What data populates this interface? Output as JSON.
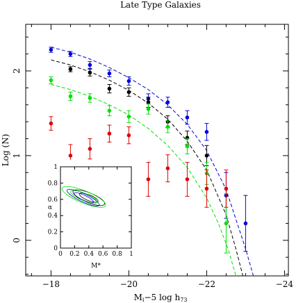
{
  "chart_data": {
    "type": "scatter",
    "title": "Late Type Galaxies",
    "xlabel_parts": {
      "base": "M",
      "base_sub": "i",
      "mid": "−5 log h",
      "end_sub": "73"
    },
    "ylabel": "Log (N)",
    "xlim": [
      -17.35,
      -24.1
    ],
    "ylim": [
      -0.42,
      2.55
    ],
    "x_ticks": [
      -18,
      -20,
      -22,
      -24
    ],
    "x_tick_labels": [
      "−18",
      "−20",
      "−22",
      "−24"
    ],
    "y_ticks": [
      0,
      1,
      2
    ],
    "y_tick_labels": [
      "0",
      "1",
      "2"
    ],
    "series": [
      {
        "color": "#0000dd",
        "points": [
          {
            "x": -18.0,
            "y": 2.25,
            "err": 0.03
          },
          {
            "x": -18.5,
            "y": 2.2,
            "err": 0.03
          },
          {
            "x": -19.0,
            "y": 2.07,
            "err": 0.04
          },
          {
            "x": -19.5,
            "y": 1.97,
            "err": 0.04
          },
          {
            "x": -20.0,
            "y": 1.88,
            "err": 0.05
          },
          {
            "x": -20.5,
            "y": 1.67,
            "err": 0.06
          },
          {
            "x": -21.0,
            "y": 1.63,
            "err": 0.06
          },
          {
            "x": -21.5,
            "y": 1.45,
            "err": 0.08
          },
          {
            "x": -22.0,
            "y": 1.28,
            "err": 0.1
          },
          {
            "x": -22.5,
            "y": 0.53,
            "err": 0.27
          },
          {
            "x": -23.0,
            "y": 0.2,
            "err": 0.33
          }
        ],
        "fit": [
          {
            "x": -18.0,
            "y": 2.28
          },
          {
            "x": -18.5,
            "y": 2.22
          },
          {
            "x": -19.0,
            "y": 2.14
          },
          {
            "x": -19.5,
            "y": 2.04
          },
          {
            "x": -20.0,
            "y": 1.92
          },
          {
            "x": -20.5,
            "y": 1.78
          },
          {
            "x": -21.0,
            "y": 1.6
          },
          {
            "x": -21.5,
            "y": 1.37
          },
          {
            "x": -22.0,
            "y": 1.06
          },
          {
            "x": -22.5,
            "y": 0.6
          },
          {
            "x": -23.0,
            "y": -0.1
          },
          {
            "x": -23.2,
            "y": -0.42
          }
        ]
      },
      {
        "color": "#000000",
        "points": [
          {
            "x": -18.5,
            "y": 2.02,
            "err": 0.03
          },
          {
            "x": -19.0,
            "y": 1.98,
            "err": 0.04
          },
          {
            "x": -19.5,
            "y": 1.79,
            "err": 0.05
          },
          {
            "x": -20.0,
            "y": 1.75,
            "err": 0.05
          },
          {
            "x": -20.5,
            "y": 1.63,
            "err": 0.06
          },
          {
            "x": -21.0,
            "y": 1.4,
            "err": 0.07
          },
          {
            "x": -21.5,
            "y": 1.21,
            "err": 0.08
          },
          {
            "x": -22.0,
            "y": 1.0,
            "err": 0.12
          }
        ],
        "fit": [
          {
            "x": -18.0,
            "y": 2.13
          },
          {
            "x": -18.5,
            "y": 2.07
          },
          {
            "x": -19.0,
            "y": 1.99
          },
          {
            "x": -19.5,
            "y": 1.89
          },
          {
            "x": -20.0,
            "y": 1.77
          },
          {
            "x": -20.5,
            "y": 1.62
          },
          {
            "x": -21.0,
            "y": 1.43
          },
          {
            "x": -21.5,
            "y": 1.17
          },
          {
            "x": -22.0,
            "y": 0.83
          },
          {
            "x": -22.5,
            "y": 0.3
          },
          {
            "x": -22.75,
            "y": -0.1
          },
          {
            "x": -22.93,
            "y": -0.42
          }
        ]
      },
      {
        "color": "#00e000",
        "points": [
          {
            "x": -18.0,
            "y": 1.89,
            "err": 0.04
          },
          {
            "x": -18.5,
            "y": 1.7,
            "err": 0.05
          },
          {
            "x": -19.0,
            "y": 1.68,
            "err": 0.05
          },
          {
            "x": -19.5,
            "y": 1.53,
            "err": 0.06
          },
          {
            "x": -20.0,
            "y": 1.46,
            "err": 0.07
          },
          {
            "x": -20.5,
            "y": 1.55,
            "err": 0.06
          },
          {
            "x": -21.0,
            "y": 1.34,
            "err": 0.07
          },
          {
            "x": -21.5,
            "y": 1.11,
            "err": 0.09
          },
          {
            "x": -22.0,
            "y": 0.79,
            "err": 0.13
          },
          {
            "x": -22.5,
            "y": 0.2,
            "err": 0.35
          }
        ],
        "fit": [
          {
            "x": -18.0,
            "y": 1.84
          },
          {
            "x": -18.5,
            "y": 1.78
          },
          {
            "x": -19.0,
            "y": 1.7
          },
          {
            "x": -19.5,
            "y": 1.6
          },
          {
            "x": -20.0,
            "y": 1.48
          },
          {
            "x": -20.5,
            "y": 1.32
          },
          {
            "x": -21.0,
            "y": 1.12
          },
          {
            "x": -21.5,
            "y": 0.86
          },
          {
            "x": -22.0,
            "y": 0.5
          },
          {
            "x": -22.3,
            "y": 0.2
          },
          {
            "x": -22.55,
            "y": -0.1
          },
          {
            "x": -22.75,
            "y": -0.42
          }
        ]
      },
      {
        "color": "#e00000",
        "points": [
          {
            "x": -18.0,
            "y": 1.38,
            "err": 0.08
          },
          {
            "x": -18.5,
            "y": 1.0,
            "err": 0.13
          },
          {
            "x": -19.0,
            "y": 1.08,
            "err": 0.12
          },
          {
            "x": -19.5,
            "y": 1.26,
            "err": 0.1
          },
          {
            "x": -20.0,
            "y": 1.24,
            "err": 0.1
          },
          {
            "x": -20.5,
            "y": 0.72,
            "err": 0.2
          },
          {
            "x": -21.0,
            "y": 0.85,
            "err": 0.16
          },
          {
            "x": -21.5,
            "y": 0.72,
            "err": 0.2
          },
          {
            "x": -22.0,
            "y": 0.61,
            "err": 0.22
          },
          {
            "x": -22.5,
            "y": 0.61,
            "err": 0.22
          }
        ]
      }
    ],
    "inset": {
      "xlabel": "M*",
      "ylabel": "α",
      "xlim": [
        0,
        1
      ],
      "ylim": [
        0,
        1
      ],
      "x_ticks": [
        0,
        0.2,
        0.4,
        0.6,
        0.8,
        1
      ],
      "x_tick_labels": [
        "0",
        "0.2",
        "0.4",
        "0.6",
        "0.8",
        "1"
      ],
      "y_ticks": [
        0,
        0.2,
        0.4,
        0.6,
        0.8,
        1
      ],
      "y_tick_labels": [
        "0",
        "0.2",
        "0.4",
        "0.6",
        "0.8",
        "1"
      ],
      "contours": [
        {
          "color": "#0000dd",
          "cx": 0.32,
          "cy": 0.62,
          "rx": 0.25,
          "ry": 0.05,
          "angle": -25
        },
        {
          "color": "#0000dd",
          "cx": 0.33,
          "cy": 0.62,
          "rx": 0.15,
          "ry": 0.03,
          "angle": -25
        },
        {
          "color": "#000000",
          "cx": 0.4,
          "cy": 0.62,
          "rx": 0.24,
          "ry": 0.06,
          "angle": -22
        },
        {
          "color": "#000000",
          "cx": 0.4,
          "cy": 0.62,
          "rx": 0.14,
          "ry": 0.035,
          "angle": -22
        },
        {
          "color": "#00e000",
          "cx": 0.33,
          "cy": 0.63,
          "rx": 0.33,
          "ry": 0.075,
          "angle": -22
        },
        {
          "color": "#00e000",
          "cx": 0.33,
          "cy": 0.63,
          "rx": 0.2,
          "ry": 0.045,
          "angle": -22
        }
      ]
    }
  }
}
